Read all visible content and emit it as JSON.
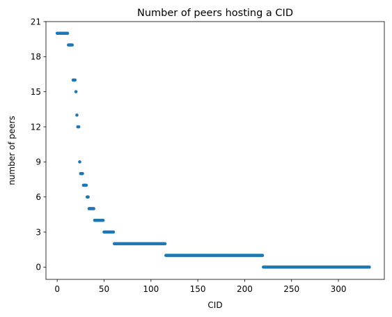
{
  "chart_data": {
    "type": "scatter",
    "title": "Number of peers hosting a CID",
    "xlabel": "CID",
    "ylabel": "number of peers",
    "xlim": [
      -12,
      349
    ],
    "ylim": [
      -1.05,
      21
    ],
    "xticks": [
      0,
      50,
      100,
      150,
      200,
      250,
      300
    ],
    "yticks": [
      0,
      3,
      6,
      9,
      12,
      15,
      18,
      21
    ],
    "grid": false,
    "color": "#1f77b4",
    "runs": [
      {
        "y": 20,
        "x_start": 0,
        "x_end": 11
      },
      {
        "y": 19,
        "x_start": 12,
        "x_end": 16
      },
      {
        "y": 16,
        "x_start": 17,
        "x_end": 19
      },
      {
        "y": 15,
        "x_start": 20,
        "x_end": 20
      },
      {
        "y": 13,
        "x_start": 21,
        "x_end": 21
      },
      {
        "y": 12,
        "x_start": 22,
        "x_end": 23
      },
      {
        "y": 9,
        "x_start": 24,
        "x_end": 24
      },
      {
        "y": 8,
        "x_start": 25,
        "x_end": 27
      },
      {
        "y": 7,
        "x_start": 28,
        "x_end": 31
      },
      {
        "y": 6,
        "x_start": 32,
        "x_end": 33
      },
      {
        "y": 5,
        "x_start": 34,
        "x_end": 39
      },
      {
        "y": 4,
        "x_start": 40,
        "x_end": 49
      },
      {
        "y": 3,
        "x_start": 50,
        "x_end": 60
      },
      {
        "y": 2,
        "x_start": 61,
        "x_end": 115
      },
      {
        "y": 1,
        "x_start": 116,
        "x_end": 219
      },
      {
        "y": 0,
        "x_start": 220,
        "x_end": 333
      }
    ]
  }
}
